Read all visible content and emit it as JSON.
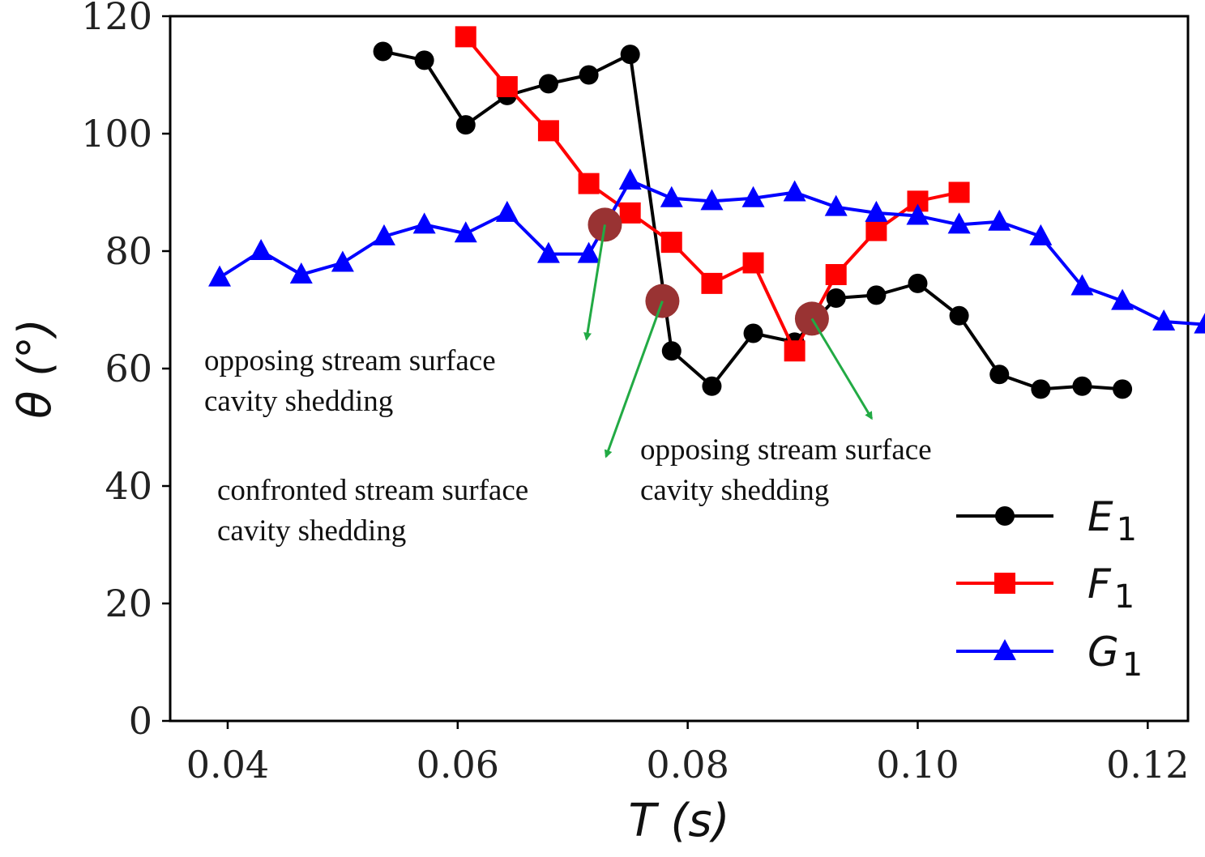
{
  "chart_data": {
    "type": "line",
    "xlabel": "T (s)",
    "ylabel": "θ (°)",
    "xlim": [
      0.035,
      0.1235
    ],
    "ylim": [
      0,
      120
    ],
    "xticks": [
      0.04,
      0.06,
      0.08,
      0.1,
      0.12
    ],
    "xtick_labels": [
      "0.04",
      "0.06",
      "0.08",
      "0.10",
      "0.12"
    ],
    "yticks": [
      0,
      20,
      40,
      60,
      80,
      100,
      120
    ],
    "ytick_labels": [
      "0",
      "20",
      "40",
      "60",
      "80",
      "100",
      "120"
    ],
    "legend_position": "lower-right",
    "series": [
      {
        "name": "E",
        "subscript": "1",
        "color": "#000000",
        "marker": "circle",
        "x": [
          0.0535,
          0.0571,
          0.0607,
          0.0643,
          0.0679,
          0.0714,
          0.075,
          0.0786,
          0.0821,
          0.0857,
          0.0893,
          0.0929,
          0.0964,
          0.1,
          0.1036,
          0.1071,
          0.1107,
          0.1143,
          0.1178
        ],
        "y": [
          114,
          112.5,
          101.5,
          106.5,
          108.5,
          110,
          113.5,
          63,
          57,
          66,
          64.5,
          72,
          72.5,
          74.5,
          69,
          59,
          56.5,
          57,
          56.5
        ]
      },
      {
        "name": "F",
        "subscript": "1",
        "color": "#ff0000",
        "marker": "square",
        "x": [
          0.0607,
          0.0643,
          0.0679,
          0.0714,
          0.075,
          0.0786,
          0.0821,
          0.0857,
          0.0893,
          0.0929,
          0.0964,
          0.1,
          0.1036
        ],
        "y": [
          116.5,
          108,
          100.5,
          91.5,
          86.5,
          81.5,
          74.5,
          78,
          63,
          76,
          83.5,
          88.5,
          90
        ]
      },
      {
        "name": "G",
        "subscript": "1",
        "color": "#0000ff",
        "marker": "triangle",
        "x": [
          0.0393,
          0.0429,
          0.0464,
          0.05,
          0.0536,
          0.0571,
          0.0607,
          0.0643,
          0.0679,
          0.0714,
          0.075,
          0.0786,
          0.0821,
          0.0857,
          0.0893,
          0.0929,
          0.0964,
          0.1,
          0.1036,
          0.1071,
          0.1107,
          0.1143,
          0.1178,
          0.1214,
          0.125
        ],
        "y": [
          75.5,
          80,
          76,
          78,
          82.5,
          84.5,
          83,
          86.5,
          79.5,
          79.5,
          92,
          89,
          88.5,
          89,
          90,
          87.5,
          86.5,
          86,
          84.5,
          85,
          82.5,
          74,
          71.5,
          68,
          67.5
        ]
      }
    ],
    "highlight_points": [
      {
        "x": 0.0728,
        "y": 84.5
      },
      {
        "x": 0.0778,
        "y": 71.5
      },
      {
        "x": 0.0908,
        "y": 68.5
      }
    ],
    "highlight_color": "#993333",
    "arrow_color": "#22aa44",
    "annotations": [
      {
        "lines": [
          "opposing stream surface",
          "cavity shedding"
        ],
        "from": {
          "x": 0.0728,
          "y": 84.5
        },
        "arrow_to": {
          "x": 0.0712,
          "y": 65
        }
      },
      {
        "lines": [
          "confronted stream surface",
          "cavity shedding"
        ],
        "from": {
          "x": 0.0778,
          "y": 71.5
        },
        "arrow_to": {
          "x": 0.0729,
          "y": 45
        }
      },
      {
        "lines": [
          "opposing stream surface",
          "cavity shedding"
        ],
        "from": {
          "x": 0.0908,
          "y": 68.5
        },
        "arrow_to": {
          "x": 0.096,
          "y": 51.5
        }
      }
    ]
  }
}
